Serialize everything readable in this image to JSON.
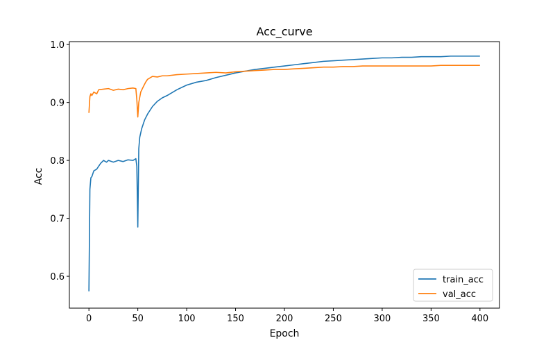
{
  "chart_data": {
    "type": "line",
    "title": "Acc_curve",
    "xlabel": "Epoch",
    "ylabel": "Acc",
    "xlim": [
      -20,
      420
    ],
    "ylim": [
      0.545,
      1.005
    ],
    "xticks": [
      0,
      50,
      100,
      150,
      200,
      250,
      300,
      350,
      400
    ],
    "yticks": [
      0.6,
      0.7,
      0.8,
      0.9,
      1.0
    ],
    "ytick_labels": [
      "0.6",
      "0.7",
      "0.8",
      "0.9",
      "1.0"
    ],
    "grid": false,
    "legend_position": "lower-right",
    "series": [
      {
        "name": "train_acc",
        "color": "#1f77b4",
        "x": [
          0,
          1,
          2,
          3,
          5,
          8,
          10,
          12,
          15,
          18,
          20,
          25,
          30,
          35,
          40,
          45,
          48,
          49,
          50,
          51,
          52,
          54,
          57,
          60,
          65,
          70,
          75,
          80,
          90,
          100,
          110,
          120,
          130,
          140,
          150,
          160,
          170,
          180,
          190,
          200,
          210,
          220,
          230,
          240,
          250,
          260,
          270,
          280,
          290,
          300,
          310,
          320,
          330,
          340,
          350,
          360,
          370,
          380,
          390,
          400
        ],
        "y": [
          0.574,
          0.75,
          0.77,
          0.772,
          0.782,
          0.785,
          0.79,
          0.795,
          0.8,
          0.797,
          0.8,
          0.797,
          0.8,
          0.798,
          0.801,
          0.8,
          0.803,
          0.79,
          0.685,
          0.82,
          0.84,
          0.855,
          0.87,
          0.88,
          0.893,
          0.902,
          0.908,
          0.912,
          0.922,
          0.93,
          0.935,
          0.938,
          0.943,
          0.947,
          0.951,
          0.954,
          0.957,
          0.959,
          0.961,
          0.963,
          0.965,
          0.967,
          0.969,
          0.971,
          0.972,
          0.973,
          0.974,
          0.975,
          0.976,
          0.977,
          0.977,
          0.978,
          0.978,
          0.979,
          0.979,
          0.979,
          0.98,
          0.98,
          0.98,
          0.98
        ]
      },
      {
        "name": "val_acc",
        "color": "#ff7f0e",
        "x": [
          0,
          1,
          2,
          3,
          5,
          8,
          10,
          15,
          20,
          25,
          30,
          35,
          40,
          45,
          48,
          49,
          50,
          51,
          53,
          55,
          58,
          60,
          65,
          70,
          75,
          80,
          90,
          100,
          110,
          120,
          130,
          140,
          150,
          160,
          170,
          180,
          190,
          200,
          210,
          220,
          230,
          240,
          250,
          260,
          270,
          280,
          290,
          300,
          310,
          320,
          330,
          340,
          350,
          360,
          370,
          380,
          390,
          400
        ],
        "y": [
          0.882,
          0.91,
          0.915,
          0.912,
          0.918,
          0.915,
          0.922,
          0.923,
          0.924,
          0.921,
          0.923,
          0.922,
          0.924,
          0.925,
          0.924,
          0.905,
          0.875,
          0.9,
          0.918,
          0.925,
          0.935,
          0.94,
          0.945,
          0.944,
          0.946,
          0.946,
          0.948,
          0.949,
          0.95,
          0.951,
          0.952,
          0.951,
          0.953,
          0.954,
          0.955,
          0.956,
          0.957,
          0.957,
          0.958,
          0.959,
          0.96,
          0.961,
          0.961,
          0.962,
          0.962,
          0.963,
          0.963,
          0.963,
          0.963,
          0.963,
          0.963,
          0.963,
          0.963,
          0.964,
          0.964,
          0.964,
          0.964,
          0.964
        ]
      }
    ]
  }
}
